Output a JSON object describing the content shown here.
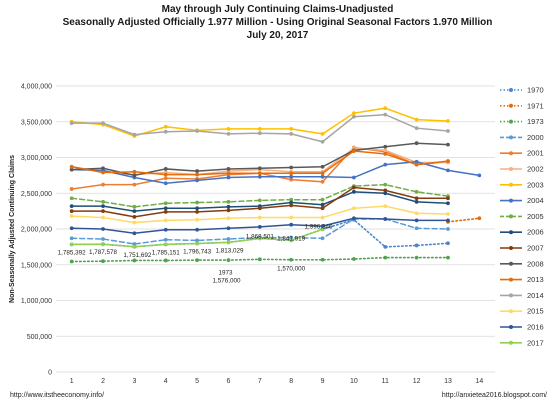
{
  "chart_data": {
    "type": "line",
    "title": [
      "May through July Continuing Claims-Unadjusted",
      "Seasonally Adjusted Officially 1.977 Million  - Using Original Seasonal Factors 1.970 Million",
      "July 20, 2017"
    ],
    "ylabel": "Non-Seasonally Adjusted Continuing Claims",
    "xlabel": "",
    "x": [
      1,
      2,
      3,
      4,
      5,
      6,
      7,
      8,
      9,
      10,
      11,
      12,
      13,
      14
    ],
    "ylim": [
      0,
      4000000
    ],
    "yticks": [
      0,
      500000,
      1000000,
      1500000,
      2000000,
      2500000,
      3000000,
      3500000,
      4000000
    ],
    "ytick_labels": [
      "0",
      "500,000",
      "1,000,000",
      "1,500,000",
      "2,000,000",
      "2,500,000",
      "3,000,000",
      "3,500,000",
      "4,000,000"
    ],
    "legend_position": "right",
    "grid": true,
    "series": [
      {
        "name": "1970",
        "color": "#4a86c8",
        "dash": "dot",
        "marker": true,
        "values": [
          1785392,
          1787578,
          1751692,
          1785151,
          1796743,
          1813029,
          1868501,
          1841919,
          1996346,
          2130000,
          1750000,
          1770000,
          1800000,
          null
        ]
      },
      {
        "name": "1971",
        "color": "#e46c0a",
        "dash": "dot",
        "marker": true,
        "values": [
          null,
          null,
          null,
          null,
          null,
          null,
          null,
          null,
          null,
          null,
          null,
          null,
          2100000,
          2150000
        ]
      },
      {
        "name": "1973",
        "color": "#4ea34e",
        "dash": "dot",
        "marker": true,
        "values": [
          1545000,
          1550000,
          1560000,
          1560000,
          1565000,
          1565000,
          1576000,
          1570000,
          1570000,
          1580000,
          1600000,
          1600000,
          1600000,
          null
        ]
      },
      {
        "name": "2000",
        "color": "#5b9bd5",
        "dash": "dash",
        "marker": true,
        "values": [
          1870000,
          1860000,
          1790000,
          1850000,
          1840000,
          1860000,
          1880000,
          1880000,
          1870000,
          2140000,
          2140000,
          2010000,
          2000000,
          null
        ]
      },
      {
        "name": "2001",
        "color": "#ed7d31",
        "dash": "solid",
        "marker": true,
        "values": [
          2560000,
          2620000,
          2620000,
          2710000,
          2700000,
          2760000,
          2780000,
          2690000,
          2660000,
          3140000,
          3080000,
          2900000,
          2940000,
          null
        ]
      },
      {
        "name": "2002",
        "color": "#f4b183",
        "dash": "solid",
        "marker": true,
        "values": [
          2870000,
          2800000,
          2760000,
          2790000,
          2760000,
          2810000,
          2830000,
          2800000,
          2800000,
          3130000,
          3100000,
          2930000,
          2930000,
          null
        ]
      },
      {
        "name": "2003",
        "color": "#ffc000",
        "dash": "solid",
        "marker": true,
        "values": [
          3500000,
          3460000,
          3300000,
          3430000,
          3380000,
          3400000,
          3400000,
          3400000,
          3330000,
          3620000,
          3690000,
          3530000,
          3510000,
          null
        ]
      },
      {
        "name": "2004",
        "color": "#4472c4",
        "dash": "solid",
        "marker": true,
        "values": [
          2830000,
          2820000,
          2720000,
          2640000,
          2680000,
          2720000,
          2730000,
          2730000,
          2730000,
          2720000,
          2900000,
          2940000,
          2820000,
          2750000
        ]
      },
      {
        "name": "2005",
        "color": "#70ad47",
        "dash": "dash",
        "marker": true,
        "values": [
          2430000,
          2380000,
          2310000,
          2360000,
          2370000,
          2380000,
          2400000,
          2410000,
          2410000,
          2600000,
          2620000,
          2520000,
          2460000,
          null
        ]
      },
      {
        "name": "2006",
        "color": "#1f4e79",
        "dash": "solid",
        "marker": true,
        "values": [
          2320000,
          2320000,
          2250000,
          2290000,
          2290000,
          2310000,
          2320000,
          2370000,
          2340000,
          2520000,
          2500000,
          2380000,
          2360000,
          null
        ]
      },
      {
        "name": "2007",
        "color": "#843c0c",
        "dash": "solid",
        "marker": true,
        "values": [
          2250000,
          2250000,
          2170000,
          2240000,
          2240000,
          2260000,
          2290000,
          2330000,
          2290000,
          2580000,
          2540000,
          2430000,
          2430000,
          null
        ]
      },
      {
        "name": "2008",
        "color": "#595959",
        "dash": "solid",
        "marker": true,
        "values": [
          2830000,
          2850000,
          2750000,
          2840000,
          2810000,
          2840000,
          2850000,
          2860000,
          2870000,
          3100000,
          3150000,
          3200000,
          3180000,
          null
        ]
      },
      {
        "name": "2013",
        "color": "#e46c0a",
        "dash": "solid",
        "marker": true,
        "values": [
          2870000,
          2790000,
          2800000,
          2760000,
          2760000,
          2780000,
          2780000,
          2780000,
          2780000,
          3090000,
          3050000,
          2900000,
          2950000,
          null
        ]
      },
      {
        "name": "2014",
        "color": "#a5a5a5",
        "dash": "solid",
        "marker": true,
        "values": [
          3480000,
          3480000,
          3320000,
          3360000,
          3370000,
          3330000,
          3340000,
          3330000,
          3220000,
          3570000,
          3600000,
          3410000,
          3370000,
          null
        ]
      },
      {
        "name": "2015",
        "color": "#ffd966",
        "dash": "solid",
        "marker": true,
        "values": [
          2180000,
          2160000,
          2090000,
          2120000,
          2130000,
          2150000,
          2160000,
          2160000,
          2160000,
          2290000,
          2320000,
          2220000,
          2210000,
          null
        ]
      },
      {
        "name": "2016",
        "color": "#2f5597",
        "dash": "solid",
        "marker": true,
        "values": [
          2010000,
          2000000,
          1940000,
          1990000,
          1990000,
          2010000,
          2030000,
          2060000,
          2040000,
          2150000,
          2140000,
          2120000,
          2120000,
          null
        ]
      },
      {
        "name": "2017",
        "color": "#92d050",
        "dash": "solid",
        "marker": true,
        "values": [
          1785392,
          1787578,
          1751692,
          1785151,
          1796743,
          1813029,
          1868501,
          1841919,
          1996346,
          null,
          null,
          null,
          null,
          null
        ]
      }
    ],
    "annotations": [
      {
        "text": "1,785,392",
        "x": 1,
        "y": 1785392
      },
      {
        "text": "1,787,578",
        "x": 2,
        "y": 1787578
      },
      {
        "text": "1,751,692",
        "x": 3,
        "y": 1751692
      },
      {
        "text": "1,785,151",
        "x": 4,
        "y": 1785151
      },
      {
        "text": "1,796,743",
        "x": 5,
        "y": 1796743
      },
      {
        "text": "1,813,029",
        "x": 6,
        "y": 1813029
      },
      {
        "text": "1,868,501",
        "x": 7,
        "y": 1868501
      },
      {
        "text": "1,841,919",
        "x": 8,
        "y": 1841919
      },
      {
        "text": "1,996,346",
        "x": 9,
        "y": 1996346
      },
      {
        "text": "1973",
        "x": 6,
        "y": 1576000
      },
      {
        "text": "1,576,000",
        "x": 6,
        "y": 1576000
      },
      {
        "text": "1,570,000",
        "x": 8,
        "y": 1570000
      }
    ]
  },
  "footer": {
    "left": "http://www.itstheeconomy.info/",
    "right": "http://anxietea2016.blogspot.com/"
  }
}
